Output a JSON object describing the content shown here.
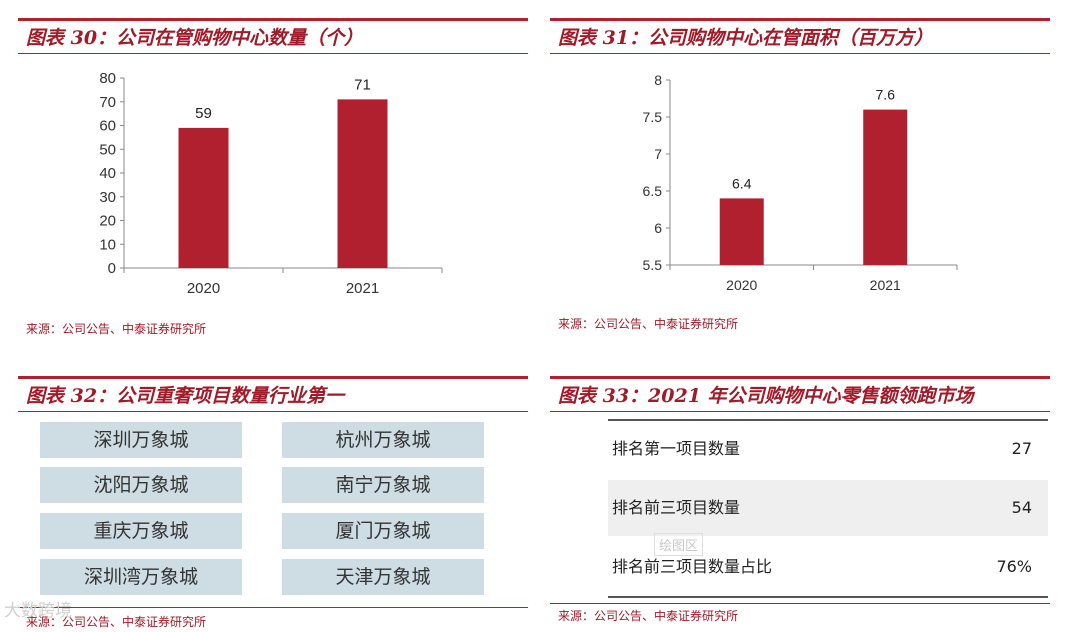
{
  "fig30": {
    "title": "图表 30：公司在管购物中心数量（个）",
    "source": "来源：公司公告、中泰证券研究所"
  },
  "fig31": {
    "title": "图表 31：公司购物中心在管面积（百万方）",
    "source": "来源：公司公告、中泰证券研究所"
  },
  "fig32": {
    "title": "图表 32：公司重奢项目数量行业第一",
    "projects": [
      "深圳万象城",
      "杭州万象城",
      "沈阳万象城",
      "南宁万象城",
      "重庆万象城",
      "厦门万象城",
      "深圳湾万象城",
      "天津万象城"
    ],
    "source": "来源：公司公告、中泰证券研究所"
  },
  "fig33": {
    "title": "图表 33：2021 年公司购物中心零售额领跑市场",
    "rows": [
      {
        "label": "排名第一项目数量",
        "value": "27"
      },
      {
        "label": "排名前三项目数量",
        "value": "54"
      },
      {
        "label": "排名前三项目数量占比",
        "value": "76%"
      }
    ],
    "source": "来源：公司公告、中泰证券研究所"
  },
  "watermarks": {
    "left": "大数跨境",
    "center": "绘图区"
  },
  "chart_data": [
    {
      "type": "bar",
      "categories": [
        "2020",
        "2021"
      ],
      "values": [
        59,
        71
      ],
      "data_labels": [
        "59",
        "71"
      ],
      "title": "公司在管购物中心数量（个）",
      "ylim": [
        0,
        80
      ],
      "yticks": [
        0,
        10,
        20,
        30,
        40,
        50,
        60,
        70,
        80
      ],
      "grid": false,
      "color": "#b0202f"
    },
    {
      "type": "bar",
      "categories": [
        "2020",
        "2021"
      ],
      "values": [
        6.4,
        7.6
      ],
      "data_labels": [
        "6.4",
        "7.6"
      ],
      "title": "公司购物中心在管面积（百万方）",
      "ylim": [
        5.5,
        8
      ],
      "yticks": [
        5.5,
        6,
        6.5,
        7,
        7.5,
        8
      ],
      "grid": false,
      "color": "#b0202f"
    }
  ]
}
